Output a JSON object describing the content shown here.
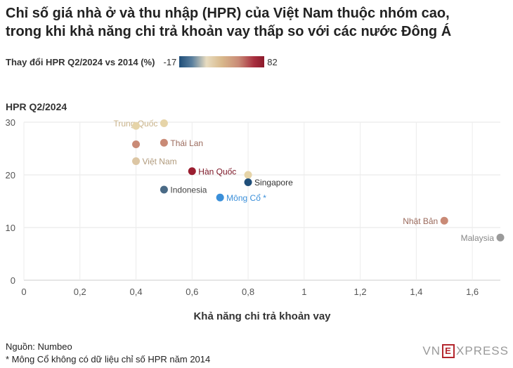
{
  "title_lines": [
    "Chỉ số giá nhà ở và thu nhập (HPR) của Việt Nam thuộc nhóm cao,",
    "trong khi khả năng chi trả khoản vay thấp so với các nước Đông Á"
  ],
  "legend": {
    "label": "Thay đổi HPR Q2/2024 vs 2014 (%)",
    "min": "-17",
    "max": "82",
    "colors": [
      "#1f4e79",
      "#e8dcc0",
      "#8b1a2b"
    ]
  },
  "chart_data": {
    "type": "scatter",
    "ylabel": "HPR Q2/2024",
    "xlabel": "Khả năng chi trả khoản vay",
    "xlim": [
      0,
      1.7
    ],
    "ylim": [
      0,
      30
    ],
    "xticks": [
      "0",
      "0,2",
      "0,4",
      "0,6",
      "0,8",
      "1",
      "1,2",
      "1,4",
      "1,6"
    ],
    "xtick_values": [
      0,
      0.2,
      0.4,
      0.6,
      0.8,
      1,
      1.2,
      1.4,
      1.6
    ],
    "yticks": [
      "0",
      "10",
      "20",
      "30"
    ],
    "ytick_values": [
      0,
      10,
      20,
      30
    ],
    "grid": true,
    "points": [
      {
        "label": "Trung Quốc",
        "x": 0.5,
        "y": 29.8,
        "color": "#e6d4a8",
        "label_color": "#c9b38a",
        "label_side": "left"
      },
      {
        "label": "",
        "x": 0.4,
        "y": 29.3,
        "color": "#e6d4a8"
      },
      {
        "label": "",
        "x": 0.4,
        "y": 25.8,
        "color": "#c98a76"
      },
      {
        "label": "Thái Lan",
        "x": 0.5,
        "y": 26.1,
        "color": "#c98a76",
        "label_color": "#9a6a5c",
        "label_side": "right"
      },
      {
        "label": "Việt Nam",
        "x": 0.4,
        "y": 22.6,
        "color": "#dcc6a4",
        "label_color": "#b09a7c",
        "label_side": "right"
      },
      {
        "label": "Hàn Quốc",
        "x": 0.6,
        "y": 20.7,
        "color": "#9a1e30",
        "label_color": "#7a1424",
        "label_side": "right"
      },
      {
        "label": "",
        "x": 0.8,
        "y": 20.0,
        "color": "#e6d4a8"
      },
      {
        "label": "Singapore",
        "x": 0.8,
        "y": 18.6,
        "color": "#1f4e79",
        "label_color": "#333333",
        "label_side": "right"
      },
      {
        "label": "Indonesia",
        "x": 0.5,
        "y": 17.2,
        "color": "#4a6a86",
        "label_color": "#444444",
        "label_side": "right"
      },
      {
        "label": "Mông Cổ *",
        "x": 0.7,
        "y": 15.7,
        "color": "#3a8fd9",
        "label_color": "#3a8fd9",
        "label_side": "right"
      },
      {
        "label": "Nhật Bản",
        "x": 1.5,
        "y": 11.3,
        "color": "#c98a76",
        "label_color": "#9a6a5c",
        "label_side": "left"
      },
      {
        "label": "Malaysia",
        "x": 1.7,
        "y": 8.1,
        "color": "#9a9a9a",
        "label_color": "#888888",
        "label_side": "left"
      }
    ]
  },
  "source": {
    "line1": "Nguồn: Numbeo",
    "line2": "* Mông Cổ không có dữ liệu chỉ số HPR năm 2014"
  },
  "logo": {
    "left": "VN",
    "box": "E",
    "right": "XPRESS"
  }
}
